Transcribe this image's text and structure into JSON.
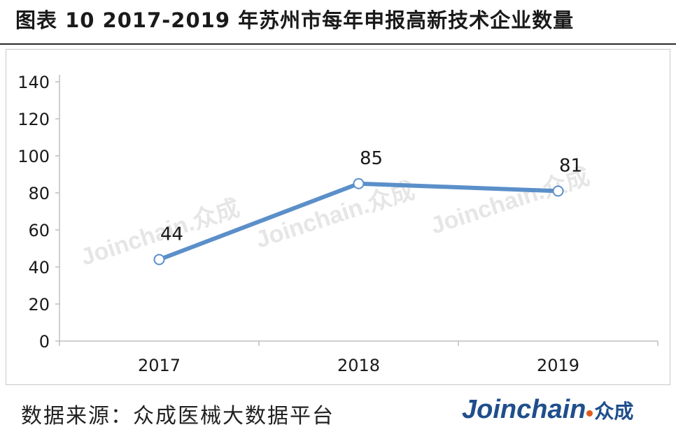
{
  "figure": {
    "title": "图表 10   2017-2019 年苏州市每年申报高新技术企业数量",
    "source": "数据来源：众成医械大数据平台"
  },
  "logo": {
    "word": "Joinchain",
    "cn": "众成"
  },
  "watermark": "Joinchain.众成",
  "colors": {
    "line": "#5b8fc9",
    "marker_fill": "#ffffff",
    "axis": "#bfbfbf",
    "text": "#1a1a1a"
  },
  "chart_data": {
    "type": "line",
    "categories": [
      "2017",
      "2018",
      "2019"
    ],
    "series": [
      {
        "values": [
          44,
          85,
          81
        ]
      }
    ],
    "data_labels": [
      "44",
      "85",
      "81"
    ],
    "yticks": [
      "0",
      "20",
      "40",
      "60",
      "80",
      "100",
      "120",
      "140"
    ],
    "ylim": [
      0,
      140
    ],
    "grid": false,
    "legend": "none"
  }
}
